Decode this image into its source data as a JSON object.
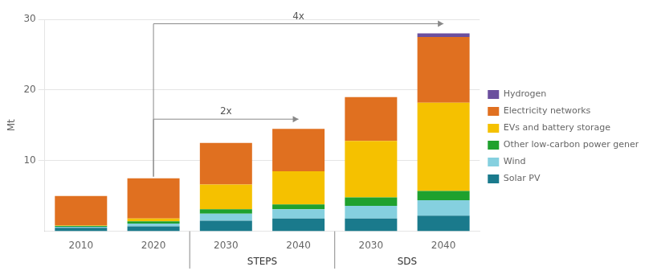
{
  "chart_data": {
    "type": "bar",
    "stacked": true,
    "categories": [
      "2010",
      "2020",
      "2030",
      "2040",
      "2030",
      "2040"
    ],
    "group_labels": [
      null,
      null,
      "STEPS",
      "STEPS",
      "SDS",
      "SDS"
    ],
    "series": [
      {
        "name": "Solar PV",
        "color": "#1a7a8c",
        "values": [
          0.5,
          0.7,
          1.5,
          1.8,
          1.8,
          2.2
        ]
      },
      {
        "name": "Wind",
        "color": "#85d0df",
        "values": [
          0.15,
          0.4,
          1.0,
          1.3,
          1.8,
          2.2
        ]
      },
      {
        "name": "Other low-carbon power generation",
        "color": "#1fa12e",
        "values": [
          0.1,
          0.3,
          0.6,
          0.7,
          1.2,
          1.3
        ]
      },
      {
        "name": "EVs and battery storage",
        "color": "#f5c100",
        "values": [
          0.05,
          0.4,
          3.5,
          4.7,
          8.0,
          12.5
        ]
      },
      {
        "name": "Electricity networks",
        "color": "#e07020",
        "values": [
          4.2,
          5.7,
          5.9,
          6.0,
          6.2,
          9.3
        ]
      },
      {
        "name": "Hydrogen",
        "color": "#6b4f9e",
        "values": [
          0.0,
          0.0,
          0.0,
          0.0,
          0.0,
          0.5
        ]
      }
    ],
    "ylabel": "Mt",
    "ylim": [
      0,
      30
    ],
    "yticks": [
      10,
      20,
      30
    ],
    "grid": true,
    "legend": "right",
    "annotations": [
      {
        "text": "2x",
        "from": "2020",
        "to": "2040",
        "to_group": "STEPS"
      },
      {
        "text": "4x",
        "from": "2020",
        "to": "2040",
        "to_group": "SDS"
      }
    ]
  }
}
